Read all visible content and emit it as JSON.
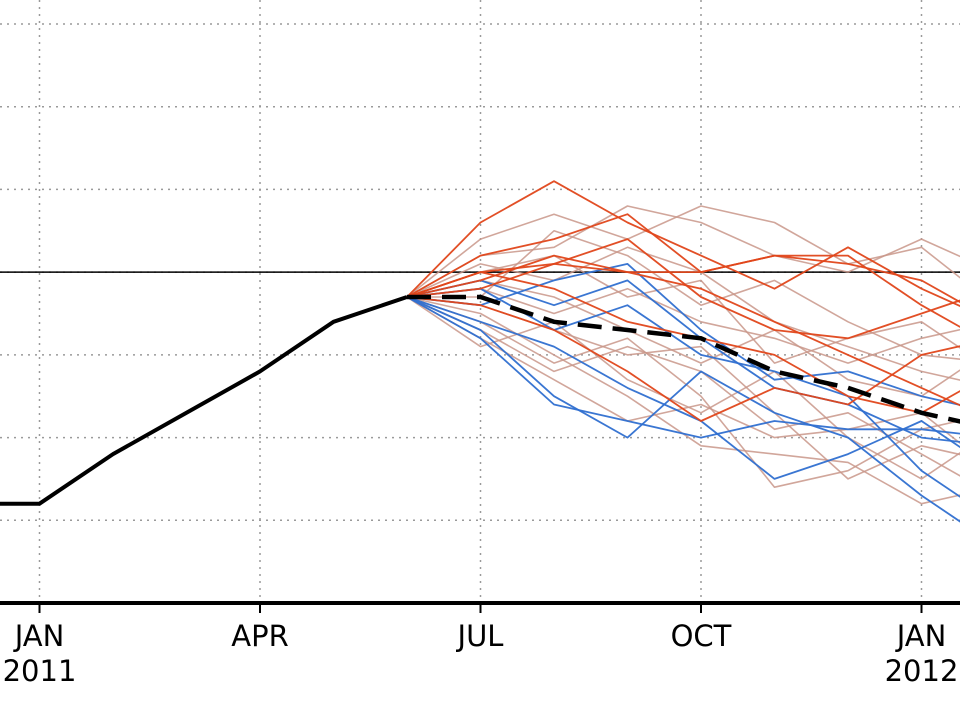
{
  "chart_data": {
    "type": "line",
    "title": "",
    "xlabel": "",
    "ylabel": "",
    "x_unit": "months",
    "x_range": [
      "2010-12-01",
      "2012-02-01"
    ],
    "y_range": [
      -2.0,
      1.5
    ],
    "grid": true,
    "reference_line_y": 0.0,
    "tick_labels": [
      {
        "x": "2011-01-01",
        "lines": [
          "JAN",
          "2011"
        ]
      },
      {
        "x": "2011-04-01",
        "lines": [
          "APR"
        ]
      },
      {
        "x": "2011-07-01",
        "lines": [
          "JUL"
        ]
      },
      {
        "x": "2011-10-01",
        "lines": [
          "OCT"
        ]
      },
      {
        "x": "2012-01-01",
        "lines": [
          "JAN",
          "2012"
        ]
      }
    ],
    "observed": {
      "color": "#000000",
      "style": "solid",
      "points": [
        [
          "2010-12-01",
          -1.4
        ],
        [
          "2011-01-01",
          -1.4
        ],
        [
          "2011-02-01",
          -1.1
        ],
        [
          "2011-03-01",
          -0.85
        ],
        [
          "2011-04-01",
          -0.6
        ],
        [
          "2011-05-01",
          -0.3
        ],
        [
          "2011-06-01",
          -0.15
        ]
      ]
    },
    "ensemble_mean": {
      "color": "#000000",
      "style": "dashed",
      "points": [
        [
          "2011-06-01",
          -0.15
        ],
        [
          "2011-07-01",
          -0.15
        ],
        [
          "2011-08-01",
          -0.3
        ],
        [
          "2011-09-01",
          -0.35
        ],
        [
          "2011-10-01",
          -0.4
        ],
        [
          "2011-11-01",
          -0.6
        ],
        [
          "2011-12-01",
          -0.7
        ],
        [
          "2012-01-01",
          -0.85
        ],
        [
          "2012-02-01",
          -0.95
        ]
      ]
    },
    "member_colors": {
      "red": "#e0461a",
      "blue": "#2f6fd0",
      "tan": "#c9968a"
    },
    "ensemble_members": [
      {
        "color": "red",
        "y": [
          -0.15,
          0.3,
          0.55,
          0.3,
          0.1,
          -0.1,
          0.15,
          -0.1,
          -0.3
        ]
      },
      {
        "color": "red",
        "y": [
          -0.15,
          0.1,
          0.2,
          0.35,
          0.0,
          0.1,
          0.05,
          -0.05,
          -0.3
        ]
      },
      {
        "color": "red",
        "y": [
          -0.15,
          -0.05,
          0.1,
          0.0,
          0.0,
          0.1,
          0.1,
          -0.2,
          -0.45
        ]
      },
      {
        "color": "red",
        "y": [
          -0.15,
          -0.1,
          0.05,
          0.2,
          -0.15,
          -0.35,
          -0.4,
          -0.25,
          -0.1
        ]
      },
      {
        "color": "red",
        "y": [
          -0.15,
          0.0,
          -0.1,
          -0.3,
          -0.4,
          -0.5,
          -0.75,
          -0.85,
          -0.6
        ]
      },
      {
        "color": "red",
        "y": [
          -0.15,
          -0.2,
          -0.35,
          -0.6,
          -0.9,
          -0.7,
          -0.8,
          -0.5,
          -0.4
        ]
      },
      {
        "color": "red",
        "y": [
          -0.15,
          0.0,
          0.05,
          0.0,
          -0.1,
          -0.3,
          -0.5,
          -0.7,
          -0.9
        ]
      },
      {
        "color": "blue",
        "y": [
          -0.15,
          -0.05,
          -0.2,
          -0.05,
          -0.4,
          -0.7,
          -0.8,
          -1.0,
          -1.05
        ]
      },
      {
        "color": "blue",
        "y": [
          -0.15,
          -0.3,
          -0.45,
          -0.7,
          -0.9,
          -1.25,
          -1.1,
          -0.9,
          -1.2
        ]
      },
      {
        "color": "blue",
        "y": [
          -0.15,
          -0.35,
          -0.75,
          -1.0,
          -0.6,
          -0.85,
          -1.0,
          -1.35,
          -1.65
        ]
      },
      {
        "color": "blue",
        "y": [
          -0.15,
          -0.1,
          -0.35,
          -0.2,
          -0.5,
          -0.6,
          -0.75,
          -1.2,
          -1.5
        ]
      },
      {
        "color": "blue",
        "y": [
          -0.15,
          -0.4,
          -0.8,
          -0.9,
          -1.0,
          -0.9,
          -0.95,
          -0.95,
          -1.0
        ]
      },
      {
        "color": "blue",
        "y": [
          -0.15,
          -0.2,
          -0.05,
          0.05,
          -0.35,
          -0.65,
          -0.6,
          -0.75,
          -0.85
        ]
      },
      {
        "color": "tan",
        "y": [
          -0.15,
          0.05,
          -0.05,
          0.15,
          0.0,
          -0.3,
          -0.45,
          -0.6,
          -0.7
        ]
      },
      {
        "color": "tan",
        "y": [
          -0.15,
          -0.3,
          -0.55,
          -0.4,
          -0.75,
          -1.3,
          -1.2,
          -0.95,
          -0.85
        ]
      },
      {
        "color": "tan",
        "y": [
          -0.15,
          -0.25,
          -0.5,
          -0.75,
          -1.05,
          -1.1,
          -1.15,
          -1.4,
          -1.3
        ]
      },
      {
        "color": "tan",
        "y": [
          -0.15,
          0.2,
          0.35,
          0.2,
          0.4,
          0.3,
          0.05,
          0.15,
          -0.2
        ]
      },
      {
        "color": "tan",
        "y": [
          -0.15,
          0.1,
          0.15,
          0.4,
          0.3,
          0.1,
          0.0,
          0.2,
          0.0
        ]
      },
      {
        "color": "tan",
        "y": [
          -0.15,
          -0.2,
          -0.35,
          -0.5,
          -0.45,
          -0.85,
          -1.25,
          -1.05,
          -1.15
        ]
      },
      {
        "color": "tan",
        "y": [
          -0.15,
          -0.4,
          -0.65,
          -0.9,
          -0.8,
          -1.0,
          -0.95,
          -0.85,
          -1.2
        ]
      },
      {
        "color": "tan",
        "y": [
          -0.15,
          -0.1,
          -0.25,
          -0.1,
          -0.3,
          -0.4,
          -0.55,
          -0.4,
          -0.3
        ]
      },
      {
        "color": "tan",
        "y": [
          -0.15,
          -0.15,
          0.25,
          0.1,
          -0.2,
          -0.05,
          -0.3,
          -0.5,
          -0.55
        ]
      },
      {
        "color": "tan",
        "y": [
          -0.15,
          -0.05,
          -0.15,
          -0.35,
          -0.55,
          -0.35,
          -0.65,
          -0.75,
          -0.45
        ]
      },
      {
        "color": "tan",
        "y": [
          -0.15,
          -0.35,
          -0.6,
          -0.45,
          -0.6,
          -0.95,
          -0.85,
          -1.1,
          -1.35
        ]
      },
      {
        "color": "tan",
        "y": [
          -0.15,
          0.0,
          0.1,
          -0.15,
          -0.05,
          -0.55,
          -0.4,
          -0.3,
          -0.6
        ]
      },
      {
        "color": "tan",
        "y": [
          -0.15,
          -0.45,
          -0.3,
          -0.65,
          -0.85,
          -0.6,
          -1.0,
          -1.25,
          -0.95
        ]
      }
    ]
  }
}
